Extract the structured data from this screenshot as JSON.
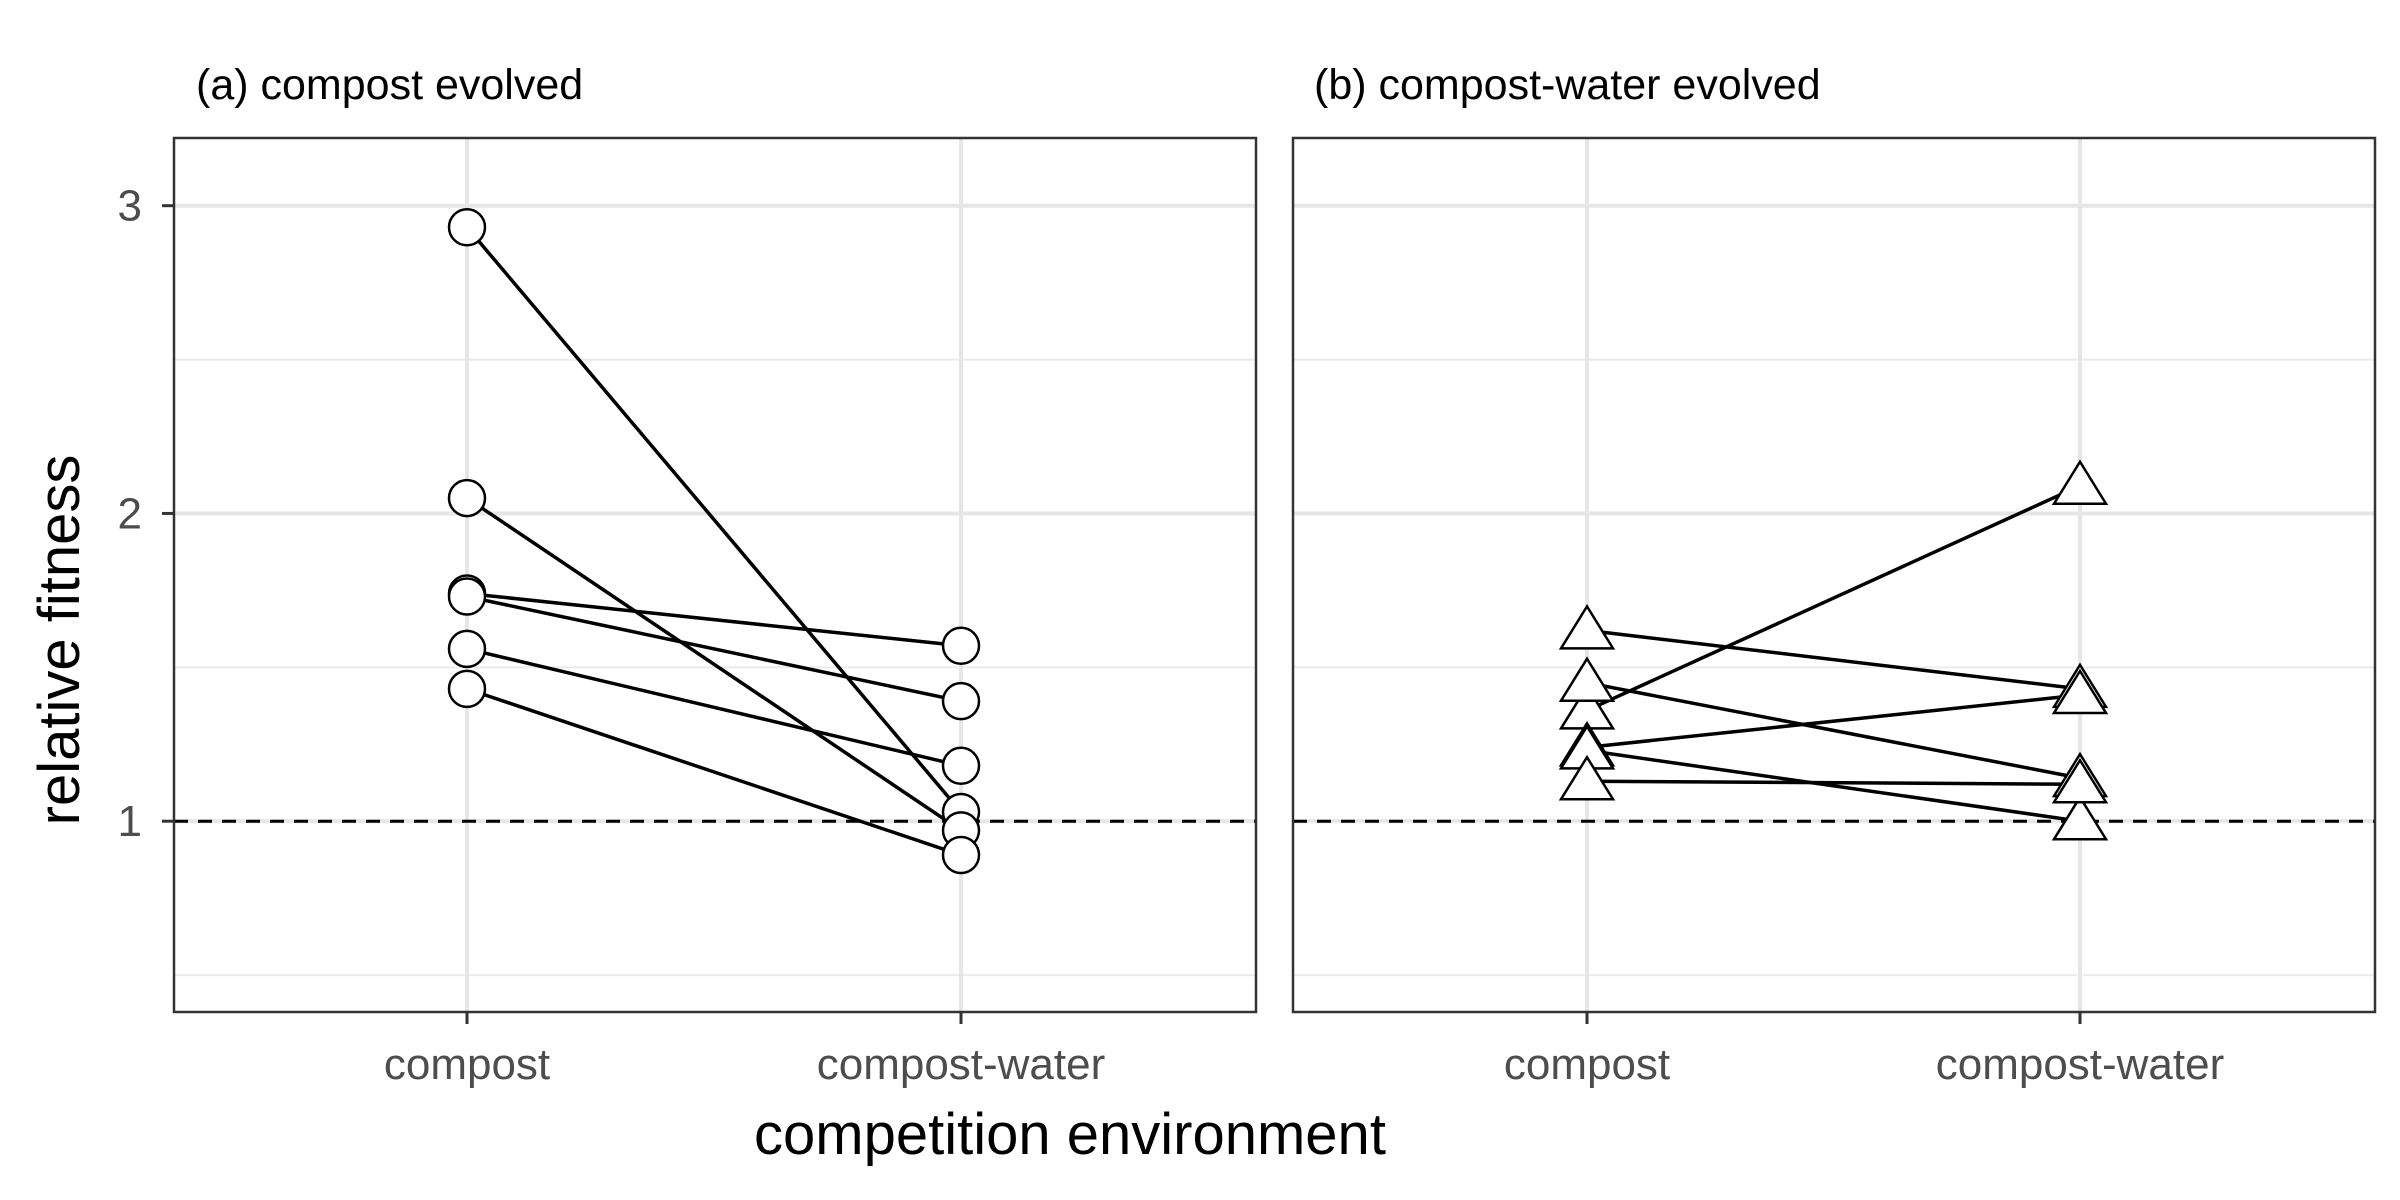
{
  "chart_data": {
    "type": "line",
    "xlabel": "competition environment",
    "ylabel": "relative fitness",
    "categories": [
      "compost",
      "compost-water"
    ],
    "ylim": [
      0.38,
      3.22
    ],
    "yticks": [
      "1",
      "2",
      "3"
    ],
    "reference_line": 1,
    "grid": true,
    "panels": [
      {
        "title": "(a) compost evolved",
        "marker": "circle",
        "series": [
          {
            "values": [
              2.93,
              1.03
            ]
          },
          {
            "values": [
              2.05,
              0.97
            ]
          },
          {
            "values": [
              1.74,
              1.57
            ]
          },
          {
            "values": [
              1.73,
              1.39
            ]
          },
          {
            "values": [
              1.56,
              1.18
            ]
          },
          {
            "values": [
              1.43,
              0.89
            ]
          }
        ]
      },
      {
        "title": "(b) compost-water evolved",
        "marker": "triangle",
        "series": [
          {
            "values": [
              1.36,
              2.09
            ]
          },
          {
            "values": [
              1.62,
              1.43
            ]
          },
          {
            "values": [
              1.45,
              1.14
            ]
          },
          {
            "values": [
              1.24,
              1.41
            ]
          },
          {
            "values": [
              1.23,
              1.0
            ]
          },
          {
            "values": [
              1.13,
              1.12
            ]
          }
        ]
      }
    ]
  }
}
